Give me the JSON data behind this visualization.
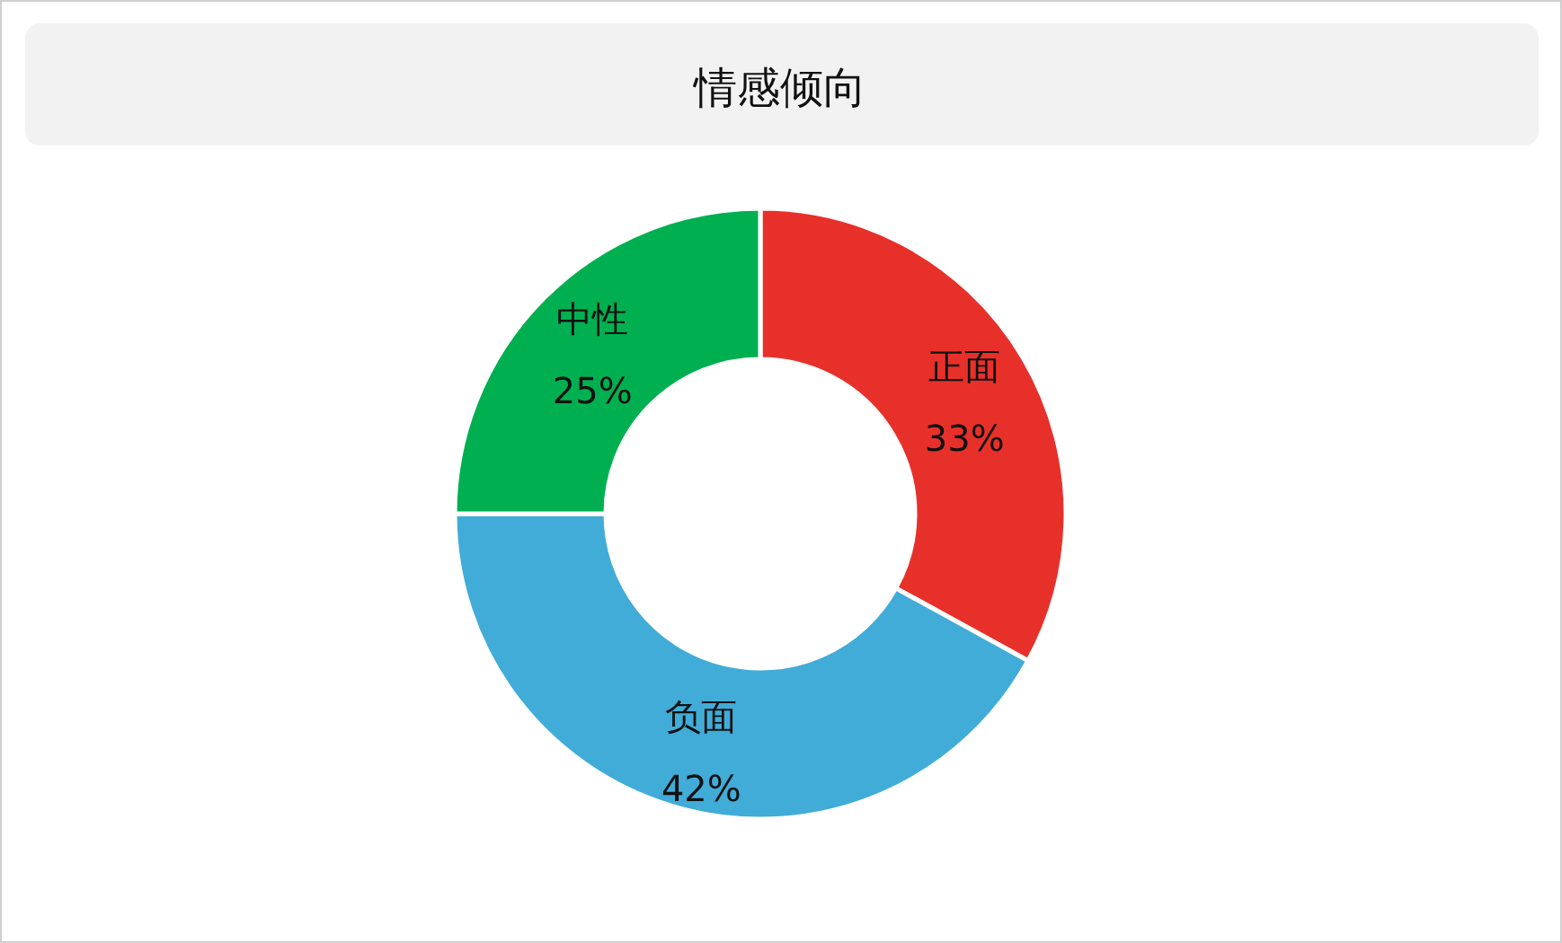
{
  "chart_data": {
    "type": "donut",
    "title": "情感倾向",
    "categories": [
      "正面",
      "负面",
      "中性"
    ],
    "values": [
      33,
      42,
      25
    ],
    "colors": [
      "#e8302a",
      "#41acd8",
      "#00b050"
    ],
    "value_labels": [
      "33%",
      "42%",
      "25%"
    ]
  }
}
